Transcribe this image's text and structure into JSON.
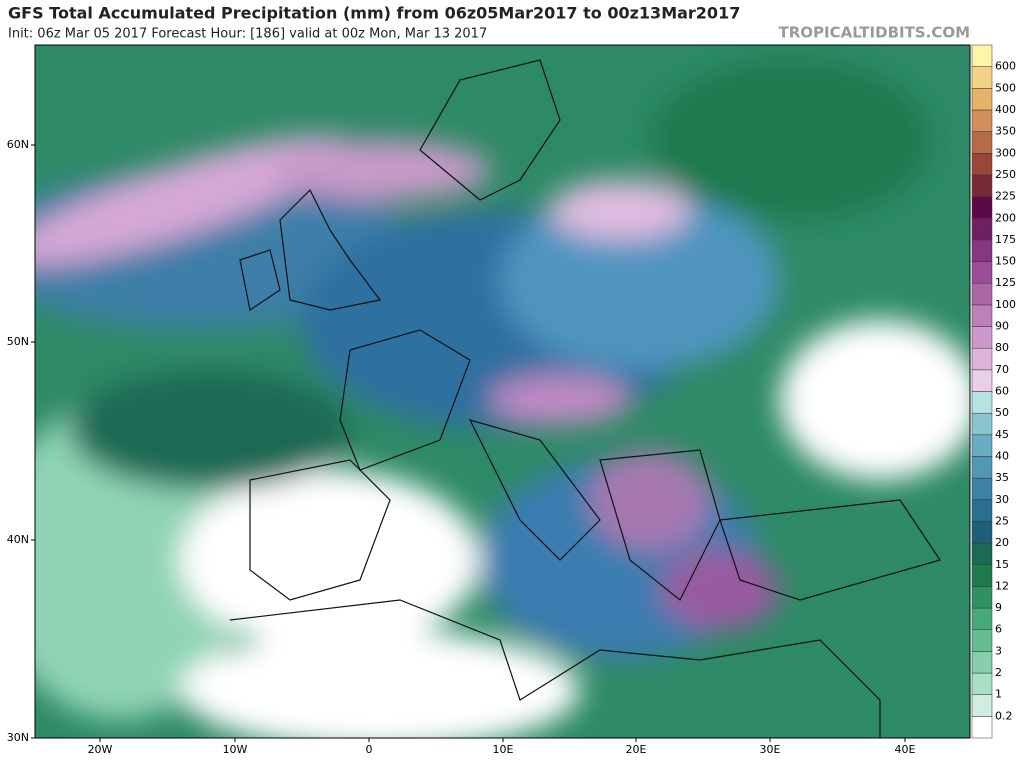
{
  "header": {
    "title": "GFS Total Accumulated Precipitation (mm) from 06z05Mar2017 to 00z13Mar2017",
    "subtitle": "Init: 06z Mar 05 2017   Forecast Hour: [186]   valid at 00z Mon, Mar 13 2017",
    "site": "TROPICALTIDBITS.COM"
  },
  "map": {
    "lat_labels": [
      "60N",
      "50N",
      "40N",
      "30N"
    ],
    "lon_labels": [
      "20W",
      "10W",
      "0",
      "10E",
      "20E",
      "30E",
      "40E"
    ]
  },
  "colorbar": {
    "labels": [
      0.2,
      1,
      2,
      3,
      6,
      9,
      12,
      15,
      20,
      25,
      30,
      35,
      40,
      45,
      50,
      60,
      70,
      80,
      90,
      100,
      125,
      150,
      175,
      200,
      225,
      250,
      300,
      350,
      400,
      500,
      600
    ],
    "colors": [
      "#ffffff",
      "#cdeee0",
      "#a9e0c6",
      "#86cfab",
      "#63bd91",
      "#45a978",
      "#2e9162",
      "#1f7a4e",
      "#1b6a54",
      "#1f5e78",
      "#2a6f93",
      "#3b82a6",
      "#5297b6",
      "#6aacc3",
      "#8ac4cf",
      "#b6e3e2",
      "#e9cfe8",
      "#dfb4dc",
      "#cf98cb",
      "#bf7fba",
      "#ad66a8",
      "#9a4d96",
      "#863780",
      "#701f63",
      "#5c0a45",
      "#7a2a36",
      "#9a4638",
      "#b76a47",
      "#d38f58",
      "#e7b26b",
      "#f3d486",
      "#fdf5a8"
    ]
  }
}
